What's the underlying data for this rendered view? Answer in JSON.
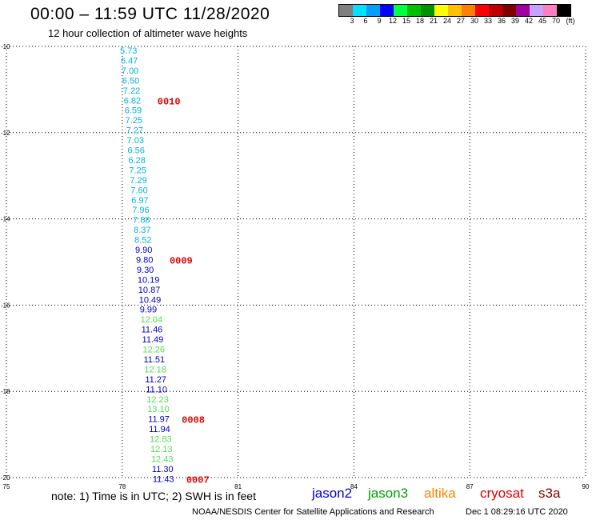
{
  "title": "00:00 – 11:59 UTC 11/28/2020",
  "subtitle": "12 hour collection of altimeter wave heights",
  "color_scale": {
    "colors": [
      "#808080",
      "#00e0ff",
      "#00a0ff",
      "#0000ff",
      "#00ff40",
      "#00c000",
      "#009000",
      "#ffff00",
      "#ffc000",
      "#ff8000",
      "#ff0000",
      "#c00000",
      "#800000",
      "#a000a0",
      "#c8a0ff",
      "#ff80c0",
      "#000000"
    ],
    "labels": [
      "3",
      "6",
      "9",
      "12",
      "15",
      "18",
      "21",
      "24",
      "27",
      "30",
      "33",
      "36",
      "39",
      "42",
      "45",
      "70"
    ],
    "unit": "(ft)"
  },
  "map": {
    "lat_labels": [
      "-10",
      "-12",
      "-14",
      "-16",
      "-18",
      "-20"
    ],
    "lon_labels": [
      "75",
      "78",
      "81",
      "84",
      "87",
      "90"
    ],
    "lon_range": [
      75,
      90
    ],
    "lat_range": [
      -20,
      -10
    ]
  },
  "satellite_colors": {
    "jason2": "#0000c8",
    "jason3": "#00a000",
    "altika": "#ff8000",
    "cryosat": "#e00000",
    "s3a": "#800000"
  },
  "wave_heights": [
    {
      "v": "5.73",
      "sat": "altika_cyan"
    },
    {
      "v": "6.47",
      "sat": "altika_cyan"
    },
    {
      "v": "7.00",
      "sat": "altika_cyan"
    },
    {
      "v": "6.50",
      "sat": "altika_cyan"
    },
    {
      "v": "7.22",
      "sat": "altika_cyan"
    },
    {
      "v": "6.82",
      "sat": "altika_cyan"
    },
    {
      "v": "6.59",
      "sat": "altika_cyan"
    },
    {
      "v": "7.25",
      "sat": "altika_cyan"
    },
    {
      "v": "7.27",
      "sat": "altika_cyan"
    },
    {
      "v": "7.03",
      "sat": "altika_cyan"
    },
    {
      "v": "6.56",
      "sat": "altika_cyan"
    },
    {
      "v": "6.28",
      "sat": "altika_cyan"
    },
    {
      "v": "7.25",
      "sat": "altika_cyan"
    },
    {
      "v": "7.29",
      "sat": "altika_cyan"
    },
    {
      "v": "7.60",
      "sat": "altika_cyan"
    },
    {
      "v": "6.97",
      "sat": "altika_cyan"
    },
    {
      "v": "7.96",
      "sat": "altika_cyan"
    },
    {
      "v": "7.88",
      "sat": "altika_cyan"
    },
    {
      "v": "8.37",
      "sat": "altika_cyan"
    },
    {
      "v": "8.52",
      "sat": "altika_cyan"
    },
    {
      "v": "9.90",
      "sat": "blue"
    },
    {
      "v": "9.80",
      "sat": "blue"
    },
    {
      "v": "9.30",
      "sat": "blue"
    },
    {
      "v": "10.19",
      "sat": "blue"
    },
    {
      "v": "10.87",
      "sat": "blue"
    },
    {
      "v": "10.49",
      "sat": "blue"
    },
    {
      "v": "9.99",
      "sat": "blue"
    },
    {
      "v": "12.04",
      "sat": "green"
    },
    {
      "v": "11.46",
      "sat": "blue"
    },
    {
      "v": "11.49",
      "sat": "blue"
    },
    {
      "v": "12.26",
      "sat": "green"
    },
    {
      "v": "11.51",
      "sat": "blue"
    },
    {
      "v": "12.18",
      "sat": "green"
    },
    {
      "v": "11.27",
      "sat": "blue"
    },
    {
      "v": "11.10",
      "sat": "blue"
    },
    {
      "v": "12.23",
      "sat": "green"
    },
    {
      "v": "13.10",
      "sat": "green"
    },
    {
      "v": "11.97",
      "sat": "blue"
    },
    {
      "v": "11.94",
      "sat": "blue"
    },
    {
      "v": "12.83",
      "sat": "green"
    },
    {
      "v": "12.13",
      "sat": "green"
    },
    {
      "v": "12.43",
      "sat": "green"
    },
    {
      "v": "11.30",
      "sat": "blue"
    },
    {
      "v": "11.43",
      "sat": "blue"
    }
  ],
  "time_marks": [
    {
      "label": "0010",
      "after_index": 5
    },
    {
      "label": "0009",
      "after_index": 21
    },
    {
      "label": "0008",
      "after_index": 37
    },
    {
      "label": "0007",
      "after_index": 43
    }
  ],
  "point_colors": {
    "altika_cyan": "#00b4dc",
    "blue": "#0000c8",
    "green": "#50e050"
  },
  "note": "note:  1) Time is in UTC;  2) SWH is in feet",
  "satellites": [
    "jason2",
    "jason3",
    "altika",
    "cryosat",
    "s3a"
  ],
  "credit": "NOAA/NESDIS Center for Satellite Applications and Research",
  "timestamp": "Dec  1 08:29:16 UTC 2020"
}
